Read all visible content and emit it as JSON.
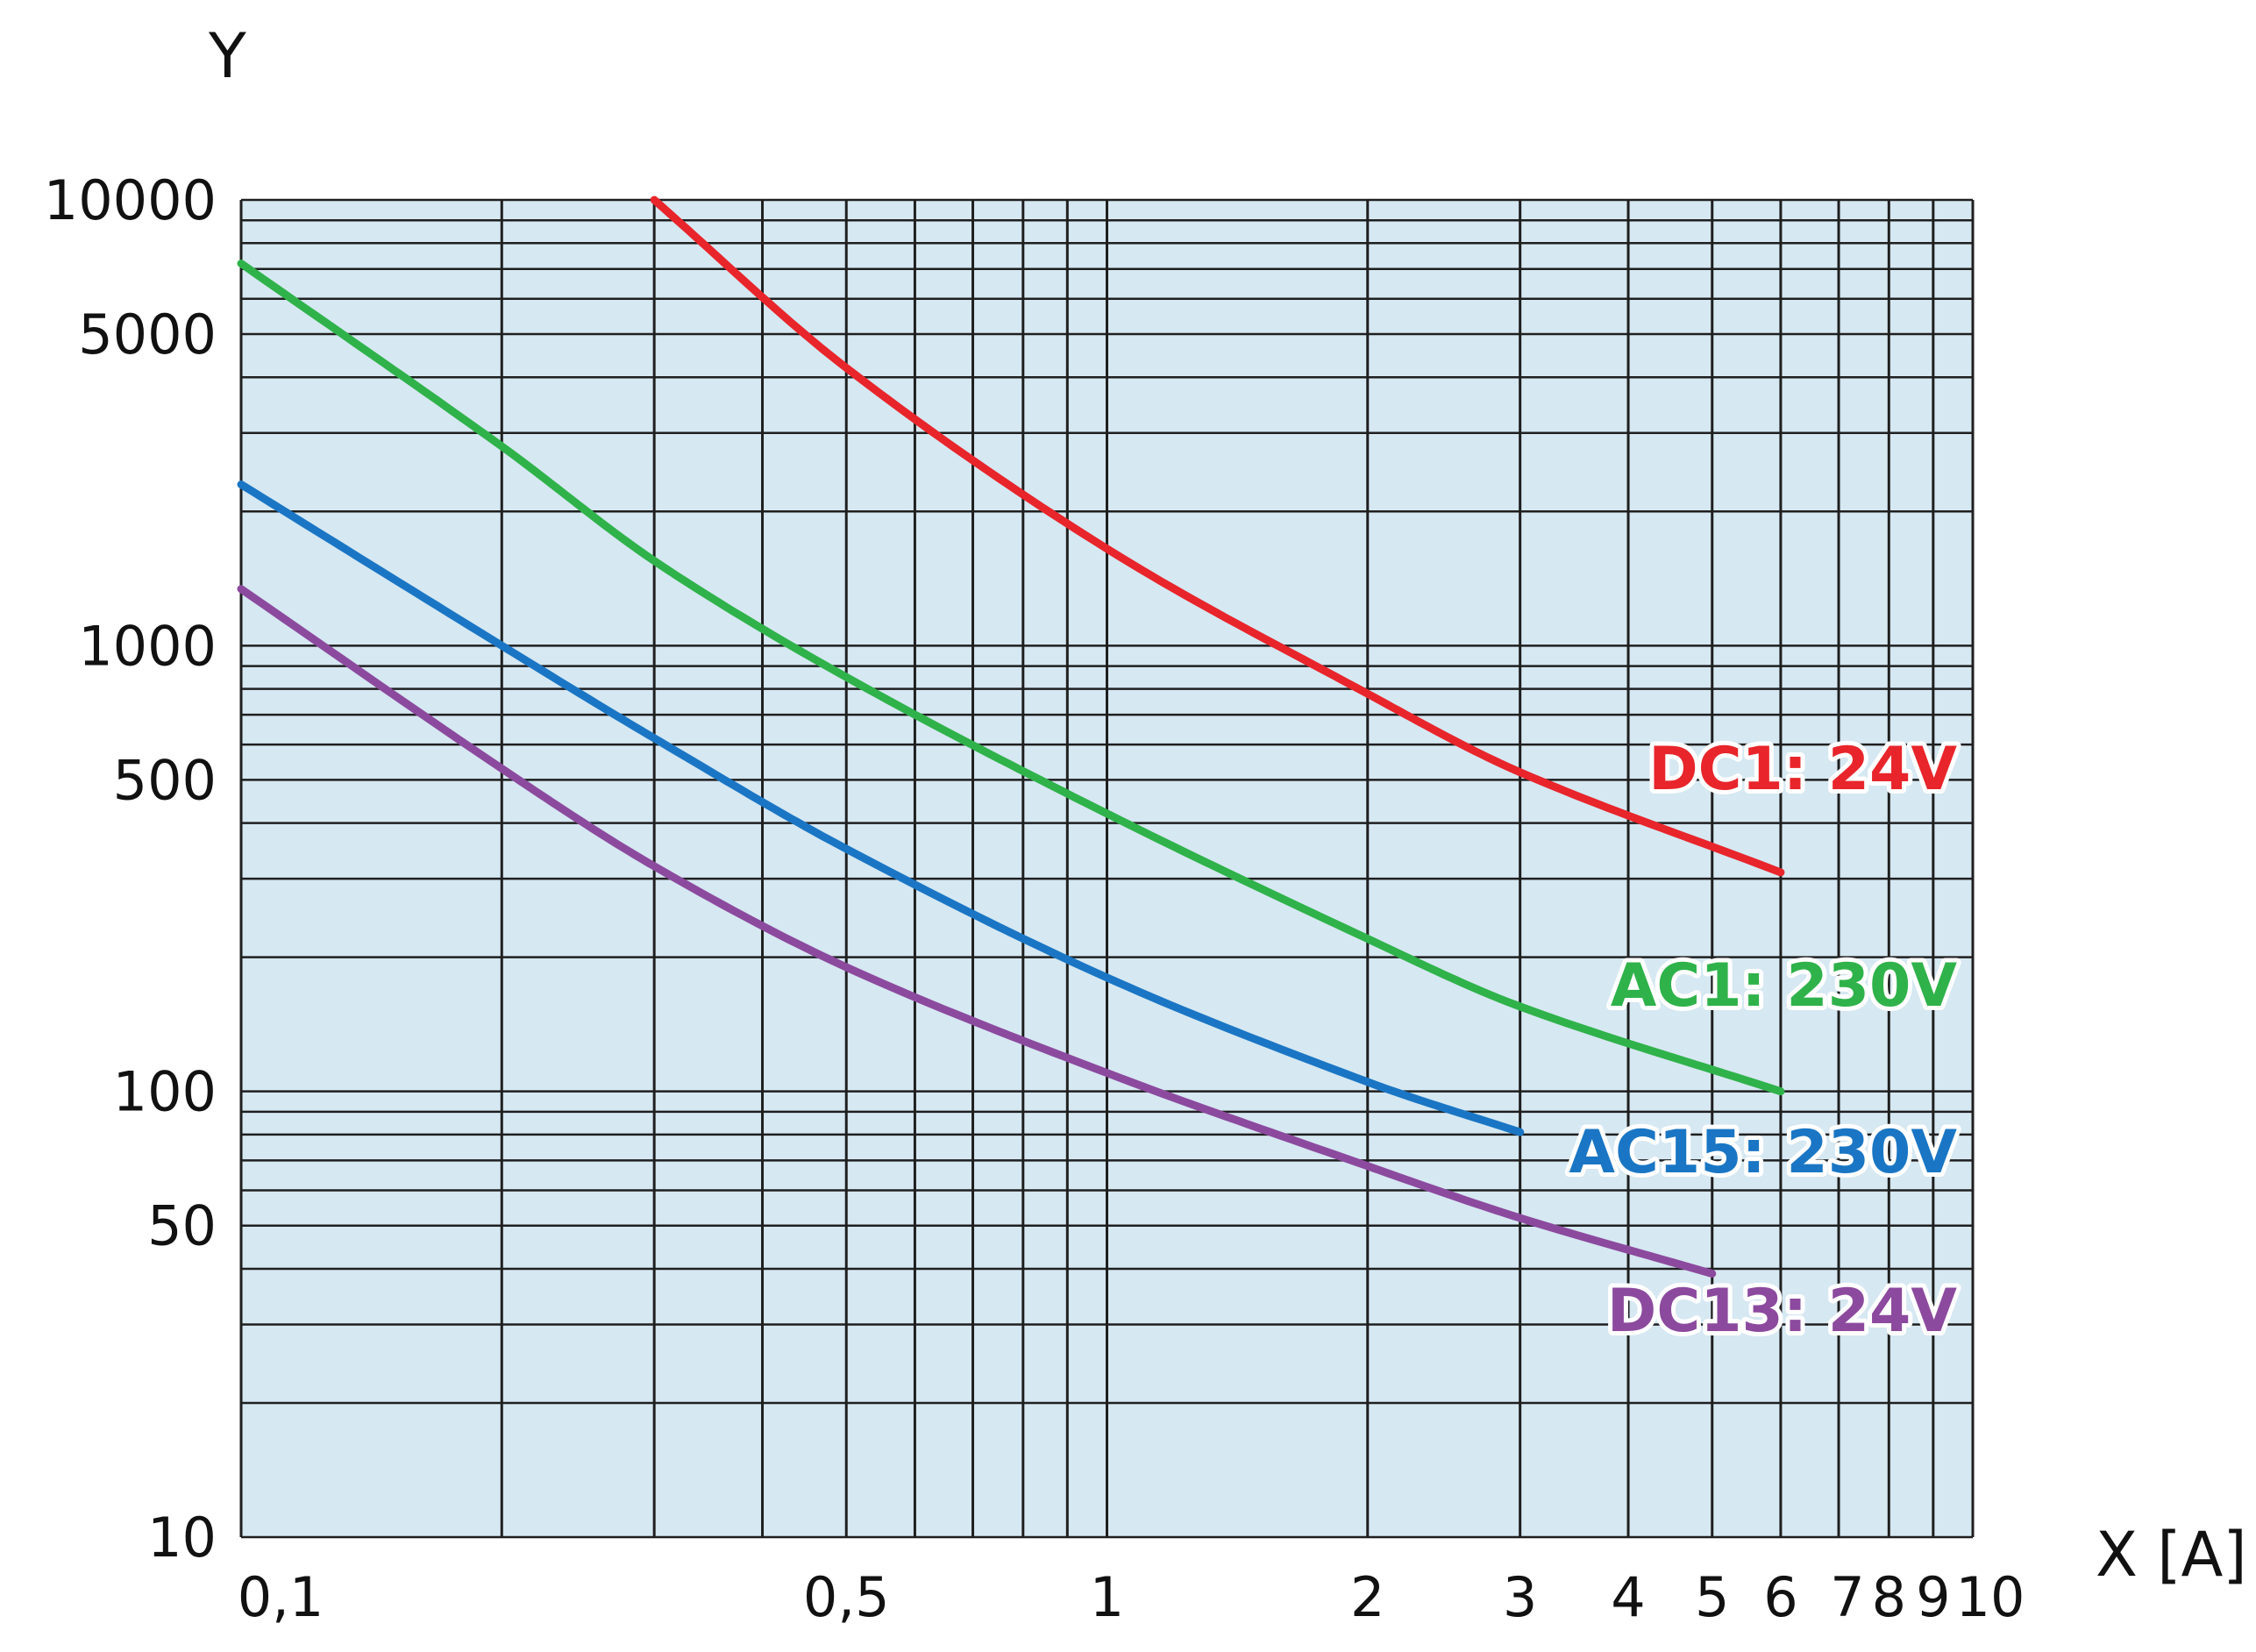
{
  "colors": {
    "plot_background": "#d6e8f2",
    "grid": "#1f1f1f"
  },
  "chart_data": {
    "type": "line",
    "title": "",
    "xlabel": "X [A]",
    "ylabel": "Y",
    "x_scale": "log",
    "y_scale": "log",
    "xlim": [
      0.1,
      10
    ],
    "ylim": [
      10,
      10000
    ],
    "grid": true,
    "x_ticks": [
      {
        "value": 0.1,
        "label": "0,1"
      },
      {
        "value": 0.5,
        "label": "0,5"
      },
      {
        "value": 1,
        "label": "1"
      },
      {
        "value": 2,
        "label": "2"
      },
      {
        "value": 3,
        "label": "3"
      },
      {
        "value": 4,
        "label": "4"
      },
      {
        "value": 5,
        "label": "5"
      },
      {
        "value": 6,
        "label": "6"
      },
      {
        "value": 7,
        "label": "7"
      },
      {
        "value": 8,
        "label": "8"
      },
      {
        "value": 9,
        "label": "9"
      },
      {
        "value": 10,
        "label": "10"
      }
    ],
    "y_ticks": [
      {
        "value": 10,
        "label": "10"
      },
      {
        "value": 50,
        "label": "50"
      },
      {
        "value": 100,
        "label": "100"
      },
      {
        "value": 500,
        "label": "500"
      },
      {
        "value": 1000,
        "label": "1000"
      },
      {
        "value": 5000,
        "label": "5000"
      },
      {
        "value": 10000,
        "label": "10000"
      }
    ],
    "x_gridlines": [
      0.1,
      0.2,
      0.3,
      0.4,
      0.5,
      0.6,
      0.7,
      0.8,
      0.9,
      1,
      2,
      3,
      4,
      5,
      6,
      7,
      8,
      9,
      10
    ],
    "y_gridlines": [
      10,
      20,
      30,
      40,
      50,
      60,
      70,
      80,
      90,
      100,
      200,
      300,
      400,
      500,
      600,
      700,
      800,
      900,
      1000,
      2000,
      3000,
      4000,
      5000,
      6000,
      7000,
      8000,
      9000,
      10000
    ],
    "series": [
      {
        "name": "DC1: 24V",
        "color": "#e8252b",
        "x": [
          0.3,
          0.5,
          1,
          2,
          3,
          6
        ],
        "y": [
          10000,
          4200,
          1650,
          780,
          520,
          310
        ]
      },
      {
        "name": "AC1: 230V",
        "color": "#2fb24a",
        "x": [
          0.1,
          0.2,
          0.3,
          0.5,
          1,
          2,
          3,
          6
        ],
        "y": [
          7200,
          2800,
          1550,
          850,
          420,
          220,
          155,
          100
        ]
      },
      {
        "name": "AC15: 230V",
        "color": "#1a76c4",
        "x": [
          0.1,
          0.2,
          0.3,
          0.5,
          1,
          2,
          3
        ],
        "y": [
          2300,
          1000,
          620,
          350,
          180,
          105,
          81
        ]
      },
      {
        "name": "DC13: 24V",
        "color": "#8c4a9e",
        "x": [
          0.1,
          0.2,
          0.3,
          0.5,
          1,
          2,
          3,
          5
        ],
        "y": [
          1340,
          530,
          320,
          190,
          110,
          68,
          52,
          39
        ]
      }
    ]
  }
}
